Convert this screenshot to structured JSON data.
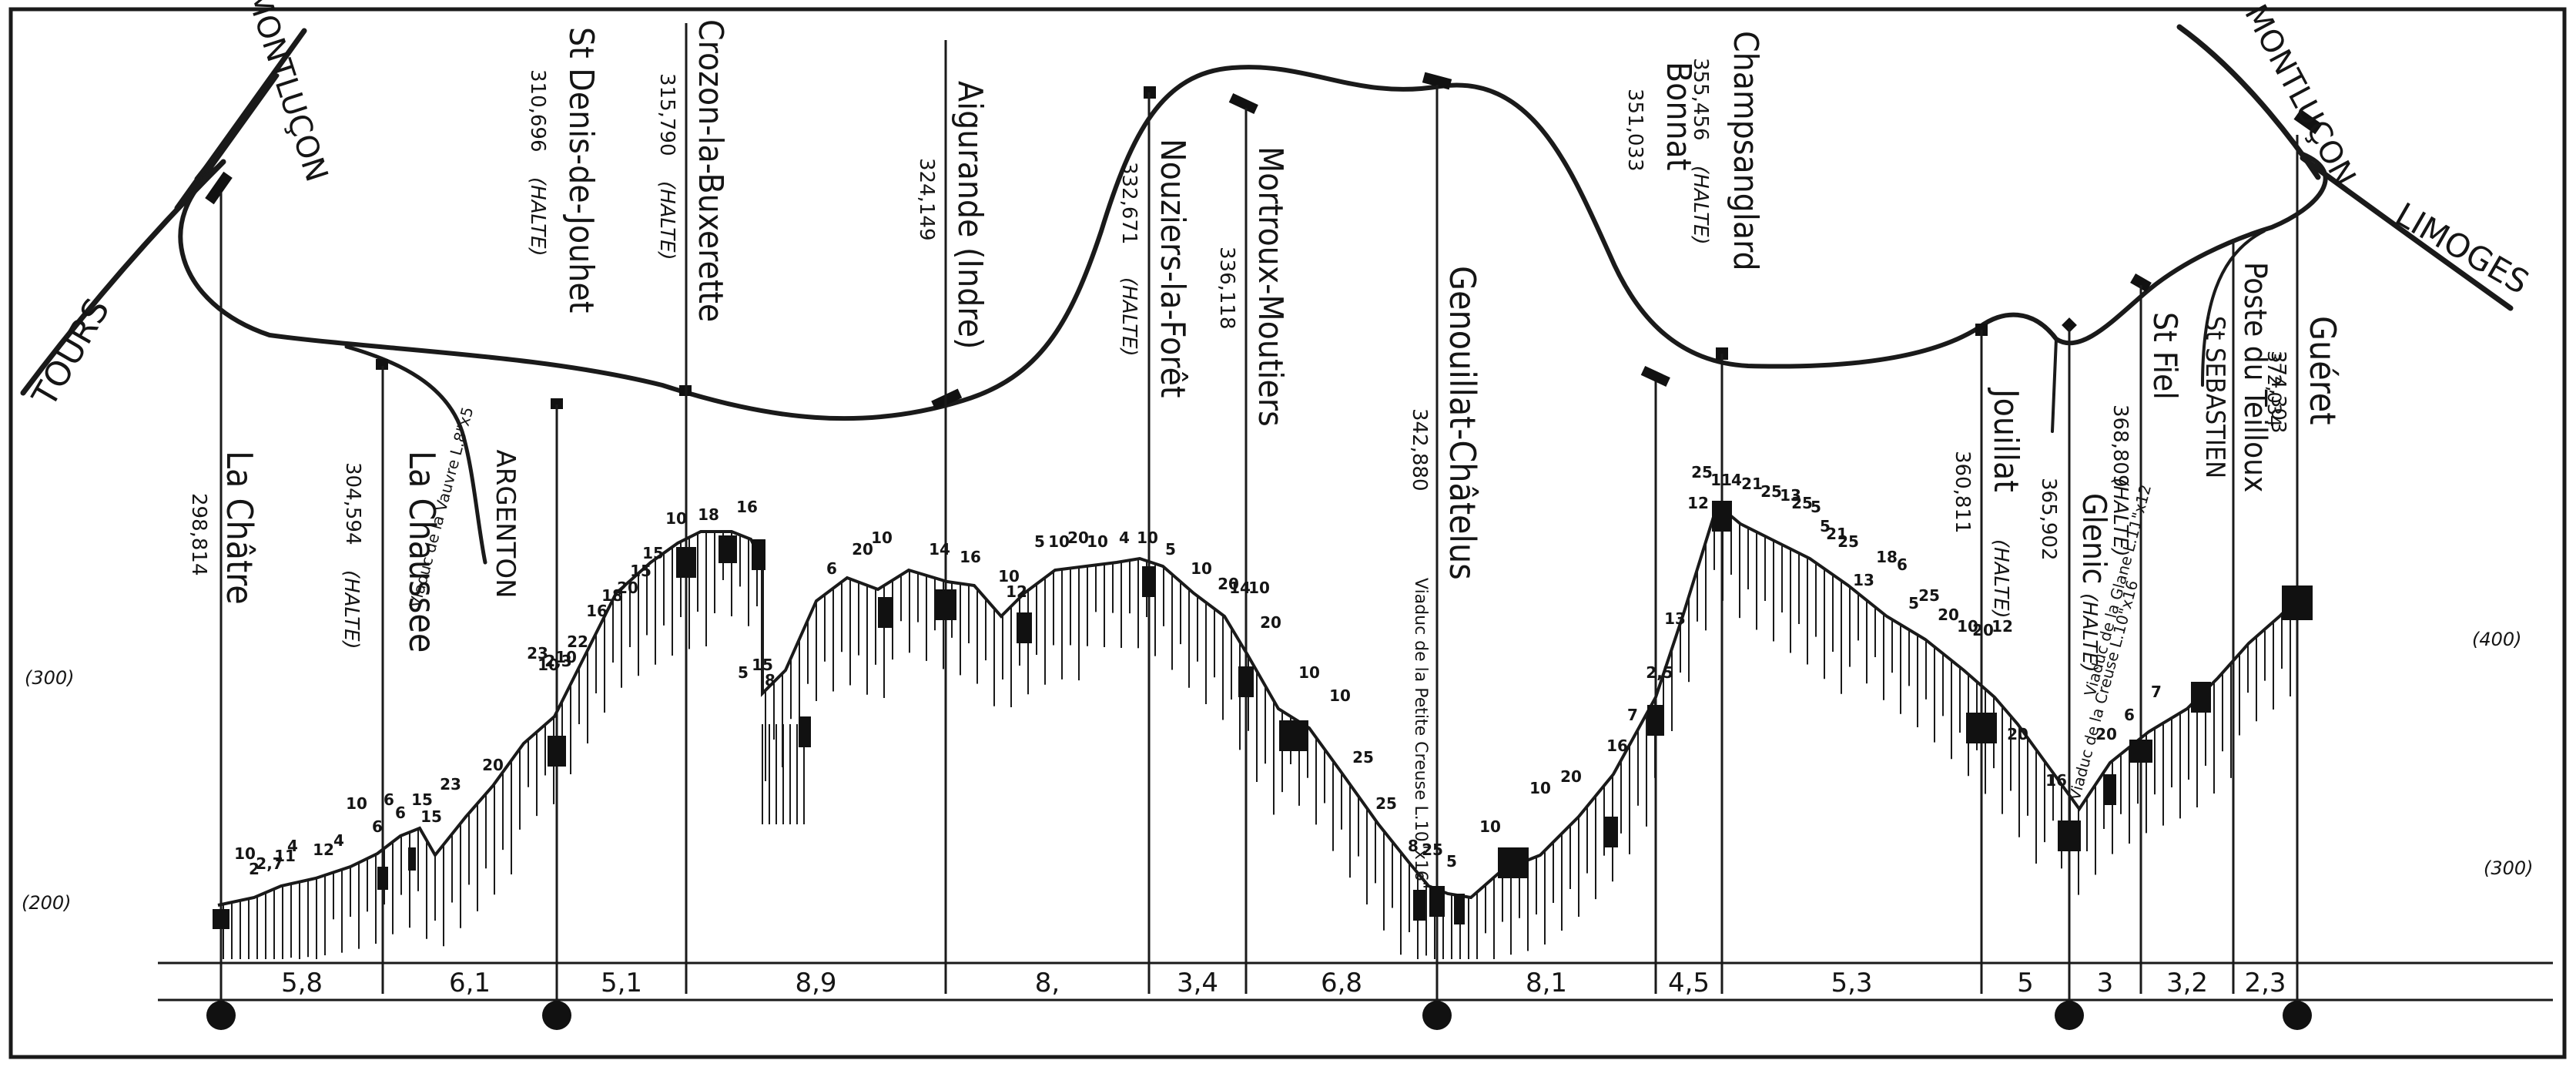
{
  "directions": {
    "montlucon_left": "MONTLUÇON",
    "tours": "TOURS",
    "montlucon_right": "MONTLUÇON",
    "limoges": "LIMOGES",
    "argenton": "ARGENTON"
  },
  "stations": [
    {
      "name": "La Châtre",
      "km": "298,814",
      "halte": ""
    },
    {
      "name": "La Chaussee",
      "km": "304,594",
      "halte": "(HALTE)"
    },
    {
      "name": "St Denis-de-Jouhet",
      "km": "310,696",
      "halte": "(HALTE)"
    },
    {
      "name": "Crozon-la-Buxerette",
      "km": "315,790",
      "halte": "(HALTE)"
    },
    {
      "name": "Aigurande (Indre)",
      "km": "324,149",
      "halte": ""
    },
    {
      "name": "Nouziers-la-Forêt",
      "km": "332,671",
      "halte": "(HALTE)"
    },
    {
      "name": "Mortroux-Moutiers",
      "km": "336,118",
      "halte": ""
    },
    {
      "name": "Genouillat-Châtelus",
      "km": "342,880",
      "halte": ""
    },
    {
      "name": "Bonnat",
      "km": "351,033",
      "halte": ""
    },
    {
      "name": "Champsanglard",
      "km": "355,456",
      "halte": "(HALTE)"
    },
    {
      "name": "Jouillat",
      "km": "360,811",
      "halte": "(HALTE)"
    },
    {
      "name": "Glenic",
      "km": "365,902",
      "halte": "(HALTE)"
    },
    {
      "name": "St Fiel",
      "km": "368,809",
      "halte": "(HALTE)"
    },
    {
      "name": "St SEBASTIEN",
      "km": "",
      "halte": ""
    },
    {
      "name": "Poste du Teilloux",
      "km": "372,034",
      "halte": ""
    },
    {
      "name": "Guéret",
      "km": "374,303",
      "halte": ""
    }
  ],
  "viaducts": [
    "Viaduc de la Vauvre L.8\"x5",
    "Viaduc de la Petite Creuse L.10\"x16\"",
    "Viaduc de la Glane L.11\"x12",
    "Viaduc de la Creuse L.10\"x16"
  ],
  "altitude_labels": {
    "left_300": "(300)",
    "left_200": "(200)",
    "right_400": "(400)",
    "right_300": "(300)"
  },
  "distances": [
    "5,8",
    "6,1",
    "5,1",
    "8,9",
    "8,",
    "3,4",
    "6,8",
    "8,1",
    "4,5",
    "5,3",
    "5",
    "3",
    "3,2",
    "2,3"
  ],
  "gradients": [
    "10",
    "2",
    "2,7",
    "11",
    "4",
    "12",
    "4",
    "10",
    "6",
    "6",
    "6",
    "15",
    "23",
    "15",
    "20",
    "23",
    "10",
    "2,3",
    "10",
    "22",
    "16",
    "18",
    "20",
    "15",
    "15",
    "10",
    "18",
    "16",
    "5",
    "15",
    "8",
    "6",
    "20",
    "10",
    "14",
    "16",
    "10",
    "12",
    "5",
    "10",
    "20",
    "10",
    "4",
    "10",
    "5",
    "10",
    "20",
    "14",
    "10",
    "20",
    "10",
    "10",
    "25",
    "25",
    "8",
    "25",
    "5",
    "10",
    "10",
    "20",
    "16",
    "7",
    "2,5",
    "13",
    "12",
    "25",
    "11",
    "4",
    "21",
    "25",
    "13",
    "25",
    "5",
    "5",
    "21",
    "25",
    "13",
    "18",
    "6",
    "5",
    "25",
    "20",
    "10",
    "20",
    "12",
    "20",
    "16",
    "20",
    "6",
    "7"
  ]
}
